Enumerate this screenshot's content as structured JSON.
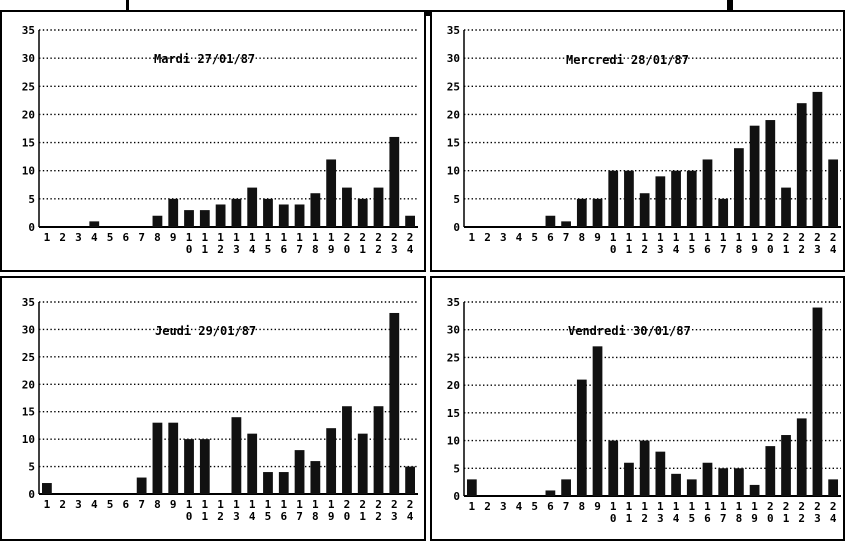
{
  "chart_data": [
    {
      "type": "bar",
      "title": "Mardi 27/01/87",
      "categories": [
        "1",
        "2",
        "3",
        "4",
        "5",
        "6",
        "7",
        "8",
        "9",
        "10",
        "11",
        "12",
        "13",
        "14",
        "15",
        "16",
        "17",
        "18",
        "19",
        "20",
        "21",
        "22",
        "23",
        "24"
      ],
      "values": [
        0,
        0,
        0,
        1,
        0,
        0,
        0,
        2,
        5,
        3,
        3,
        4,
        5,
        7,
        5,
        4,
        4,
        6,
        12,
        7,
        5,
        7,
        16,
        2
      ],
      "ylim": [
        0,
        35
      ],
      "yticks": [
        0,
        5,
        10,
        15,
        20,
        25,
        30,
        35
      ],
      "grid": true,
      "bar_color": "#111111"
    },
    {
      "type": "bar",
      "title": "Mercredi 28/01/87",
      "categories": [
        "1",
        "2",
        "3",
        "4",
        "5",
        "6",
        "7",
        "8",
        "9",
        "10",
        "11",
        "12",
        "13",
        "14",
        "15",
        "16",
        "17",
        "18",
        "19",
        "20",
        "21",
        "22",
        "23",
        "24"
      ],
      "values": [
        0,
        0,
        0,
        0,
        0,
        2,
        1,
        5,
        5,
        10,
        10,
        6,
        9,
        10,
        10,
        12,
        5,
        14,
        18,
        19,
        7,
        22,
        24,
        12
      ],
      "ylim": [
        0,
        35
      ],
      "yticks": [
        0,
        5,
        10,
        15,
        20,
        25,
        30,
        35
      ],
      "grid": true,
      "bar_color": "#111111"
    },
    {
      "type": "bar",
      "title": "Jeudi 29/01/87",
      "categories": [
        "1",
        "2",
        "3",
        "4",
        "5",
        "6",
        "7",
        "8",
        "9",
        "10",
        "11",
        "12",
        "13",
        "14",
        "15",
        "16",
        "17",
        "18",
        "19",
        "20",
        "21",
        "22",
        "23",
        "24"
      ],
      "values": [
        2,
        0,
        0,
        0,
        0,
        0,
        3,
        13,
        13,
        10,
        10,
        0,
        14,
        11,
        4,
        4,
        8,
        6,
        12,
        16,
        11,
        16,
        33,
        5
      ],
      "ylim": [
        0,
        35
      ],
      "yticks": [
        0,
        5,
        10,
        15,
        20,
        25,
        30,
        35
      ],
      "grid": true,
      "bar_color": "#111111"
    },
    {
      "type": "bar",
      "title": "Vendredi 30/01/87",
      "categories": [
        "1",
        "2",
        "3",
        "4",
        "5",
        "6",
        "7",
        "8",
        "9",
        "10",
        "11",
        "12",
        "13",
        "14",
        "15",
        "16",
        "17",
        "18",
        "19",
        "20",
        "21",
        "22",
        "23",
        "24"
      ],
      "values": [
        3,
        0,
        0,
        0,
        0,
        1,
        3,
        21,
        27,
        10,
        6,
        10,
        8,
        4,
        3,
        6,
        5,
        5,
        2,
        9,
        11,
        14,
        34,
        3
      ],
      "ylim": [
        0,
        35
      ],
      "yticks": [
        0,
        5,
        10,
        15,
        20,
        25,
        30,
        35
      ],
      "grid": true,
      "bar_color": "#111111"
    }
  ]
}
